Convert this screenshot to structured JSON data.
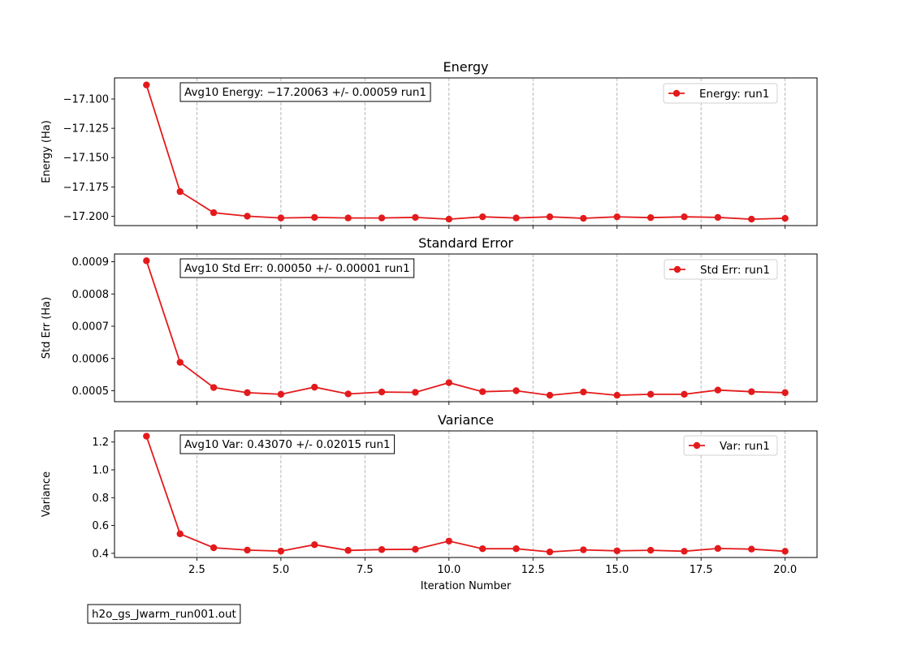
{
  "colors": {
    "series": "#e31a1c",
    "grid": "#b0b0b0"
  },
  "footer_label": "h2o_gs_Jwarm_run001.out",
  "chart_data": [
    {
      "type": "line",
      "title": "Energy",
      "xlabel": "",
      "ylabel": "Energy (Ha)",
      "annotation": "Avg10 Energy: −17.20063 +/- 0.00059  run1",
      "legend": "Energy: run1",
      "legend_position": "top-right",
      "x": [
        1,
        2,
        3,
        4,
        5,
        6,
        7,
        8,
        9,
        10,
        11,
        12,
        13,
        14,
        15,
        16,
        17,
        18,
        19,
        20
      ],
      "values": [
        -17.088,
        -17.179,
        -17.197,
        -17.2,
        -17.2015,
        -17.201,
        -17.2015,
        -17.2015,
        -17.201,
        -17.2025,
        -17.2005,
        -17.2015,
        -17.2005,
        -17.2018,
        -17.2005,
        -17.2012,
        -17.2005,
        -17.201,
        -17.2025,
        -17.2018
      ],
      "xlim": [
        0.05,
        20.95
      ],
      "ylim": [
        -17.208,
        -17.082
      ],
      "yticks": [
        -17.1,
        -17.125,
        -17.15,
        -17.175,
        -17.2
      ],
      "ytick_labels": [
        "−17.100",
        "−17.125",
        "−17.150",
        "−17.175",
        "−17.200"
      ],
      "xticks": [
        2.5,
        5.0,
        7.5,
        10.0,
        12.5,
        15.0,
        17.5,
        20.0
      ],
      "xtick_labels": [],
      "grid": "x-dashed"
    },
    {
      "type": "line",
      "title": "Standard Error",
      "xlabel": "",
      "ylabel": "Std Err (Ha)",
      "annotation": "Avg10 Std Err: 0.00050 +/- 0.00001  run1",
      "legend": "Std Err: run1",
      "legend_position": "top-right",
      "x": [
        1,
        2,
        3,
        4,
        5,
        6,
        7,
        8,
        9,
        10,
        11,
        12,
        13,
        14,
        15,
        16,
        17,
        18,
        19,
        20
      ],
      "values": [
        0.000903,
        0.000588,
        0.00051,
        0.000494,
        0.000489,
        0.000511,
        0.00049,
        0.000496,
        0.000495,
        0.000525,
        0.000497,
        0.0005,
        0.000486,
        0.000496,
        0.000486,
        0.000489,
        0.000489,
        0.000502,
        0.000497,
        0.000494
      ],
      "xlim": [
        0.05,
        20.95
      ],
      "ylim": [
        0.000466,
        0.000924
      ],
      "yticks": [
        0.0005,
        0.0006,
        0.0007,
        0.0008,
        0.0009
      ],
      "ytick_labels": [
        "0.0005",
        "0.0006",
        "0.0007",
        "0.0008",
        "0.0009"
      ],
      "xticks": [
        2.5,
        5.0,
        7.5,
        10.0,
        12.5,
        15.0,
        17.5,
        20.0
      ],
      "xtick_labels": [],
      "grid": "x-dashed"
    },
    {
      "type": "line",
      "title": "Variance",
      "xlabel": "Iteration Number",
      "ylabel": "Variance",
      "annotation": "Avg10 Var: 0.43070 +/- 0.02015  run1",
      "legend": "Var: run1",
      "legend_position": "top-right",
      "x": [
        1,
        2,
        3,
        4,
        5,
        6,
        7,
        8,
        9,
        10,
        11,
        12,
        13,
        14,
        15,
        16,
        17,
        18,
        19,
        20
      ],
      "values": [
        1.242,
        0.54,
        0.44,
        0.423,
        0.416,
        0.462,
        0.421,
        0.427,
        0.429,
        0.488,
        0.433,
        0.433,
        0.41,
        0.425,
        0.418,
        0.422,
        0.415,
        0.435,
        0.43,
        0.415
      ],
      "xlim": [
        0.05,
        20.95
      ],
      "ylim": [
        0.37,
        1.28
      ],
      "yticks": [
        0.4,
        0.6,
        0.8,
        1.0,
        1.2
      ],
      "ytick_labels": [
        "0.4",
        "0.6",
        "0.8",
        "1.0",
        "1.2"
      ],
      "xticks": [
        2.5,
        5.0,
        7.5,
        10.0,
        12.5,
        15.0,
        17.5,
        20.0
      ],
      "xtick_labels": [
        "2.5",
        "5.0",
        "7.5",
        "10.0",
        "12.5",
        "15.0",
        "17.5",
        "20.0"
      ],
      "grid": "x-dashed"
    }
  ]
}
